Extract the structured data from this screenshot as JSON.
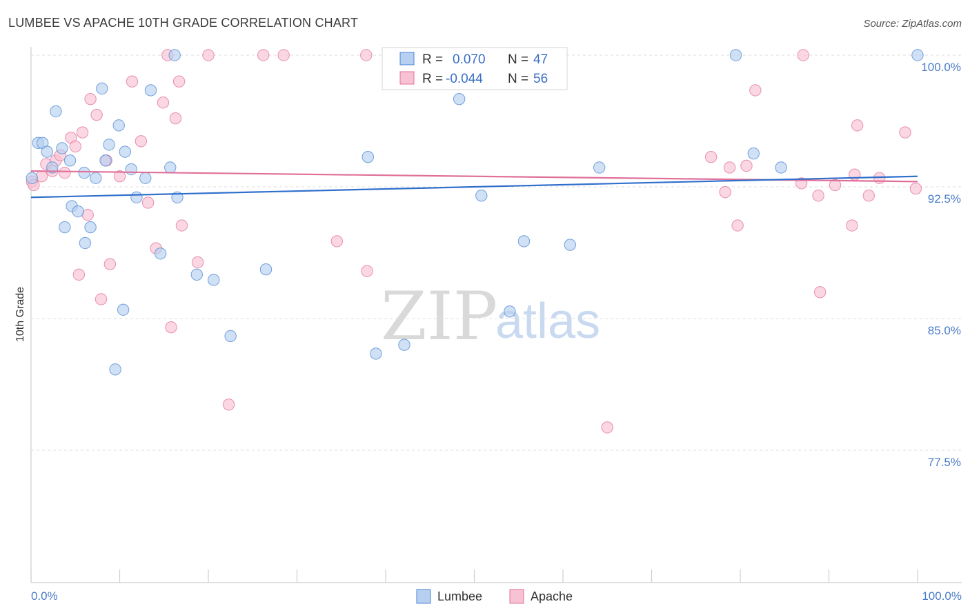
{
  "chart_data": {
    "type": "scatter",
    "title": "LUMBEE VS APACHE 10TH GRADE CORRELATION CHART",
    "source": "Source: ZipAtlas.com",
    "ylabel": "10th Grade",
    "xlabel": "",
    "xlim": [
      0,
      100
    ],
    "ylim": [
      70.5,
      101.8
    ],
    "yticks": [
      77.5,
      85.0,
      92.5,
      100.0
    ],
    "ytick_labels": [
      "77.5%",
      "85.0%",
      "92.5%",
      "100.0%"
    ],
    "xtick_labels": [
      "0.0%",
      "100.0%"
    ],
    "grid": true,
    "legend_position": "top-center",
    "watermark": {
      "zip": "ZIP",
      "atlas": "atlas"
    },
    "stats": [
      {
        "r_label": "R =",
        "r": "0.070",
        "n_label": "N =",
        "n": "47"
      },
      {
        "r_label": "R =",
        "r": "-0.044",
        "n_label": "N =",
        "n": "56"
      }
    ],
    "series": [
      {
        "name": "Lumbee",
        "color": "#4a86d4",
        "fill": "#b7cff0",
        "trend": [
          [
            0,
            91.9
          ],
          [
            100,
            93.1
          ]
        ],
        "points": [
          [
            0.1,
            93.0
          ],
          [
            0.8,
            95.0
          ],
          [
            1.3,
            95.0
          ],
          [
            1.8,
            94.5
          ],
          [
            2.4,
            93.6
          ],
          [
            2.8,
            96.8
          ],
          [
            3.5,
            94.7
          ],
          [
            3.8,
            90.2
          ],
          [
            4.4,
            94.0
          ],
          [
            4.6,
            91.4
          ],
          [
            5.3,
            91.1
          ],
          [
            6.0,
            93.3
          ],
          [
            6.1,
            89.3
          ],
          [
            6.7,
            90.2
          ],
          [
            7.3,
            93.0
          ],
          [
            8.0,
            98.1
          ],
          [
            8.4,
            94.0
          ],
          [
            8.8,
            94.9
          ],
          [
            9.5,
            82.1
          ],
          [
            9.9,
            96.0
          ],
          [
            10.4,
            85.5
          ],
          [
            10.6,
            94.5
          ],
          [
            11.3,
            93.5
          ],
          [
            11.9,
            91.9
          ],
          [
            12.9,
            93.0
          ],
          [
            13.5,
            98.0
          ],
          [
            14.6,
            88.7
          ],
          [
            15.7,
            93.6
          ],
          [
            16.2,
            100.0
          ],
          [
            16.5,
            91.9
          ],
          [
            18.7,
            87.5
          ],
          [
            20.6,
            87.2
          ],
          [
            22.5,
            84.0
          ],
          [
            26.5,
            87.8
          ],
          [
            38.0,
            94.2
          ],
          [
            38.9,
            83.0
          ],
          [
            42.1,
            83.5
          ],
          [
            48.3,
            97.5
          ],
          [
            50.8,
            92.0
          ],
          [
            54.0,
            85.4
          ],
          [
            55.6,
            89.4
          ],
          [
            60.8,
            89.2
          ],
          [
            64.1,
            93.6
          ],
          [
            79.5,
            100.0
          ],
          [
            81.5,
            94.4
          ],
          [
            84.6,
            93.6
          ],
          [
            100.0,
            100.0
          ]
        ]
      },
      {
        "name": "Apache",
        "color": "#e0709a",
        "fill": "#f7c2d3",
        "trend": [
          [
            0,
            93.4
          ],
          [
            100,
            92.8
          ]
        ],
        "points": [
          [
            0.1,
            92.8
          ],
          [
            0.3,
            92.6
          ],
          [
            1.2,
            93.1
          ],
          [
            1.7,
            93.8
          ],
          [
            2.4,
            93.4
          ],
          [
            2.8,
            94.0
          ],
          [
            3.3,
            94.3
          ],
          [
            3.8,
            93.3
          ],
          [
            4.5,
            95.3
          ],
          [
            5.0,
            94.8
          ],
          [
            5.4,
            87.5
          ],
          [
            5.8,
            95.6
          ],
          [
            6.4,
            90.9
          ],
          [
            6.7,
            97.5
          ],
          [
            7.4,
            96.6
          ],
          [
            7.9,
            86.1
          ],
          [
            8.5,
            94.0
          ],
          [
            8.9,
            88.1
          ],
          [
            10.0,
            93.1
          ],
          [
            11.4,
            98.5
          ],
          [
            12.4,
            95.1
          ],
          [
            13.2,
            91.6
          ],
          [
            14.1,
            89.0
          ],
          [
            14.9,
            97.3
          ],
          [
            15.4,
            100.0
          ],
          [
            15.8,
            84.5
          ],
          [
            16.3,
            96.4
          ],
          [
            16.7,
            98.5
          ],
          [
            17.0,
            90.3
          ],
          [
            18.8,
            88.2
          ],
          [
            20.0,
            100.0
          ],
          [
            22.3,
            80.1
          ],
          [
            26.2,
            100.0
          ],
          [
            28.5,
            100.0
          ],
          [
            34.5,
            89.4
          ],
          [
            37.8,
            100.0
          ],
          [
            37.9,
            87.7
          ],
          [
            65.0,
            78.8
          ],
          [
            76.7,
            94.2
          ],
          [
            78.3,
            92.2
          ],
          [
            78.8,
            93.6
          ],
          [
            79.7,
            90.3
          ],
          [
            80.7,
            93.7
          ],
          [
            81.7,
            98.0
          ],
          [
            86.9,
            92.7
          ],
          [
            87.1,
            100.0
          ],
          [
            88.8,
            92.0
          ],
          [
            89.0,
            86.5
          ],
          [
            90.7,
            92.6
          ],
          [
            92.6,
            90.3
          ],
          [
            92.9,
            93.2
          ],
          [
            93.2,
            96.0
          ],
          [
            94.5,
            92.0
          ],
          [
            95.7,
            93.0
          ],
          [
            98.6,
            95.6
          ],
          [
            99.8,
            92.4
          ]
        ]
      }
    ]
  }
}
